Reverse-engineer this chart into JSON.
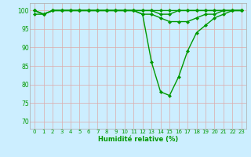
{
  "title": "",
  "xlabel": "Humidité relative (%)",
  "ylabel": "",
  "xlim": [
    -0.5,
    23.5
  ],
  "ylim": [
    68,
    102
  ],
  "yticks": [
    70,
    75,
    80,
    85,
    90,
    95,
    100
  ],
  "xtick_labels": [
    "0",
    "1",
    "2",
    "3",
    "4",
    "5",
    "6",
    "7",
    "8",
    "9",
    "10",
    "11",
    "12",
    "13",
    "14",
    "15",
    "16",
    "17",
    "18",
    "19",
    "20",
    "21",
    "22",
    "23"
  ],
  "bg_color": "#cceeff",
  "grid_color": "#ddaaaa",
  "line_color": "#009900",
  "marker": "D",
  "marker_size": 2.0,
  "line_width": 1.0,
  "series": [
    [
      100,
      99,
      100,
      100,
      100,
      100,
      100,
      100,
      100,
      100,
      100,
      100,
      100,
      100,
      100,
      100,
      100,
      100,
      100,
      100,
      100,
      100,
      100,
      100
    ],
    [
      100,
      99,
      100,
      100,
      100,
      100,
      100,
      100,
      100,
      100,
      100,
      100,
      100,
      100,
      99,
      99,
      100,
      100,
      100,
      100,
      100,
      100,
      100,
      100
    ],
    [
      100,
      99,
      100,
      100,
      100,
      100,
      100,
      100,
      100,
      100,
      100,
      100,
      99,
      99,
      98,
      97,
      97,
      97,
      98,
      99,
      99,
      100,
      100,
      100
    ],
    [
      99,
      99,
      100,
      100,
      100,
      100,
      100,
      100,
      100,
      100,
      100,
      100,
      99,
      86,
      78,
      77,
      82,
      89,
      94,
      96,
      98,
      99,
      100,
      100
    ]
  ]
}
